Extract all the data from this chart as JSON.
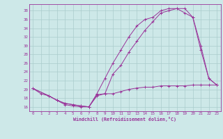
{
  "xlabel": "Windchill (Refroidissement éolien,°C)",
  "bg_color": "#cde8e8",
  "grid_color": "#aacccc",
  "line_color": "#993399",
  "spine_color": "#993399",
  "xlim": [
    -0.5,
    23.5
  ],
  "ylim": [
    15.0,
    39.5
  ],
  "yticks": [
    16,
    18,
    20,
    22,
    24,
    26,
    28,
    30,
    32,
    34,
    36,
    38
  ],
  "xticks": [
    0,
    1,
    2,
    3,
    4,
    5,
    6,
    7,
    8,
    9,
    10,
    11,
    12,
    13,
    14,
    15,
    16,
    17,
    18,
    19,
    20,
    21,
    22,
    23
  ],
  "line1_x": [
    0,
    1,
    2,
    3,
    4,
    5,
    6,
    7,
    8,
    9,
    10,
    11,
    12,
    13,
    14,
    15,
    16,
    17,
    18,
    19,
    20,
    21,
    22,
    23
  ],
  "line1_y": [
    20.2,
    19.0,
    18.5,
    17.5,
    16.5,
    16.2,
    16.0,
    16.0,
    18.8,
    19.0,
    19.0,
    19.5,
    20.0,
    20.3,
    20.5,
    20.5,
    20.8,
    20.8,
    20.8,
    20.8,
    21.0,
    21.0,
    21.0,
    21.0
  ],
  "line2_x": [
    0,
    2,
    3,
    4,
    5,
    6,
    7,
    8,
    9,
    10,
    11,
    12,
    13,
    14,
    15,
    16,
    17,
    18,
    19,
    20,
    21,
    22,
    23
  ],
  "line2_y": [
    20.2,
    18.5,
    17.5,
    16.8,
    16.5,
    16.2,
    16.0,
    19.0,
    22.5,
    26.0,
    29.0,
    32.0,
    34.5,
    36.0,
    36.5,
    38.0,
    38.5,
    38.5,
    38.5,
    36.5,
    30.0,
    22.5,
    21.0
  ],
  "line3_x": [
    0,
    2,
    3,
    4,
    5,
    6,
    7,
    8,
    9,
    10,
    11,
    12,
    13,
    14,
    15,
    16,
    17,
    18,
    19,
    20,
    21,
    22,
    23
  ],
  "line3_y": [
    20.2,
    18.5,
    17.5,
    16.8,
    16.5,
    16.2,
    16.0,
    18.5,
    19.0,
    23.5,
    25.5,
    28.5,
    31.0,
    33.5,
    35.5,
    37.5,
    38.0,
    38.5,
    37.5,
    36.5,
    29.0,
    22.5,
    21.0
  ]
}
